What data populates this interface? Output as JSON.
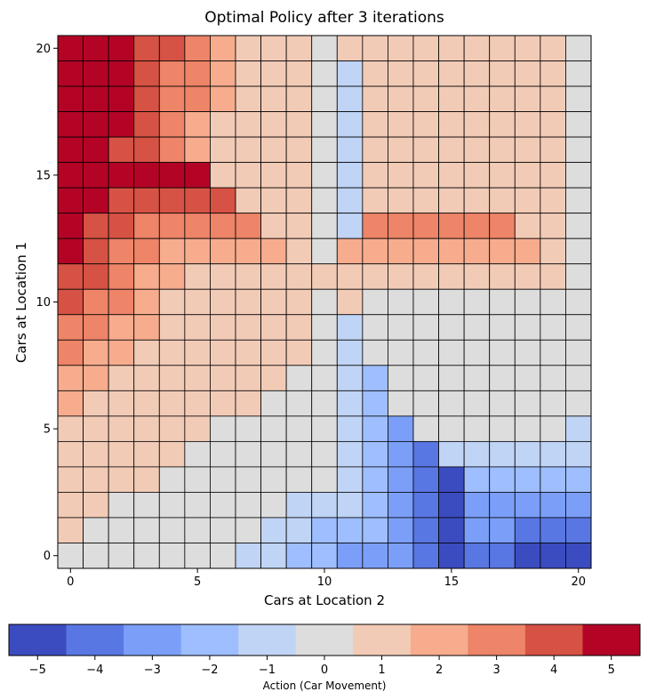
{
  "chart_data": {
    "type": "heatmap",
    "title": "Optimal Policy after 3 iterations",
    "xlabel": "Cars at Location 2",
    "ylabel": "Cars at Location 1",
    "x": [
      0,
      1,
      2,
      3,
      4,
      5,
      6,
      7,
      8,
      9,
      10,
      11,
      12,
      13,
      14,
      15,
      16,
      17,
      18,
      19,
      20
    ],
    "y": [
      0,
      1,
      2,
      3,
      4,
      5,
      6,
      7,
      8,
      9,
      10,
      11,
      12,
      13,
      14,
      15,
      16,
      17,
      18,
      19,
      20
    ],
    "x_ticks": [
      0,
      5,
      10,
      15,
      20
    ],
    "y_ticks": [
      0,
      5,
      10,
      15,
      20
    ],
    "colormap": "coolwarm",
    "colorbar": {
      "label": "Action (Car Movement)",
      "ticks": [
        "−5",
        "−4",
        "−3",
        "−2",
        "−1",
        "0",
        "1",
        "2",
        "3",
        "4",
        "5"
      ],
      "range": [
        -5,
        5
      ]
    },
    "values_by_y_desc": [
      [
        5,
        5,
        5,
        4,
        4,
        3,
        2,
        1,
        1,
        1,
        0,
        1,
        1,
        1,
        1,
        1,
        1,
        1,
        1,
        1,
        0
      ],
      [
        5,
        5,
        5,
        4,
        3,
        3,
        2,
        1,
        1,
        1,
        0,
        -1,
        1,
        1,
        1,
        1,
        1,
        1,
        1,
        1,
        0
      ],
      [
        5,
        5,
        5,
        4,
        3,
        3,
        2,
        1,
        1,
        1,
        0,
        -1,
        1,
        1,
        1,
        1,
        1,
        1,
        1,
        1,
        0
      ],
      [
        5,
        5,
        5,
        4,
        3,
        2,
        1,
        1,
        1,
        1,
        0,
        -1,
        1,
        1,
        1,
        1,
        1,
        1,
        1,
        1,
        0
      ],
      [
        5,
        5,
        4,
        4,
        3,
        2,
        1,
        1,
        1,
        1,
        0,
        -1,
        1,
        1,
        1,
        1,
        1,
        1,
        1,
        1,
        0
      ],
      [
        5,
        5,
        5,
        5,
        5,
        5,
        1,
        1,
        1,
        1,
        0,
        -1,
        1,
        1,
        1,
        1,
        1,
        1,
        1,
        1,
        0
      ],
      [
        5,
        5,
        4,
        4,
        4,
        4,
        4,
        1,
        1,
        1,
        0,
        -1,
        1,
        1,
        1,
        1,
        1,
        1,
        1,
        1,
        0
      ],
      [
        5,
        4,
        4,
        3,
        3,
        3,
        3,
        3,
        1,
        1,
        0,
        -1,
        3,
        3,
        3,
        3,
        3,
        3,
        1,
        1,
        0
      ],
      [
        5,
        4,
        3,
        3,
        2,
        2,
        2,
        2,
        2,
        1,
        0,
        2,
        2,
        2,
        2,
        2,
        2,
        2,
        2,
        1,
        0
      ],
      [
        4,
        4,
        3,
        2,
        2,
        1,
        1,
        1,
        1,
        1,
        1,
        1,
        1,
        1,
        1,
        1,
        1,
        1,
        1,
        1,
        0
      ],
      [
        4,
        3,
        3,
        2,
        1,
        1,
        1,
        1,
        1,
        1,
        0,
        1,
        0,
        0,
        0,
        0,
        0,
        0,
        0,
        0,
        0
      ],
      [
        3,
        3,
        2,
        2,
        1,
        1,
        1,
        1,
        1,
        1,
        0,
        -1,
        0,
        0,
        0,
        0,
        0,
        0,
        0,
        0,
        0
      ],
      [
        3,
        2,
        2,
        1,
        1,
        1,
        1,
        1,
        1,
        1,
        0,
        -1,
        0,
        0,
        0,
        0,
        0,
        0,
        0,
        0,
        0
      ],
      [
        2,
        2,
        1,
        1,
        1,
        1,
        1,
        1,
        1,
        0,
        0,
        -1,
        -2,
        0,
        0,
        0,
        0,
        0,
        0,
        0,
        0
      ],
      [
        2,
        1,
        1,
        1,
        1,
        1,
        1,
        1,
        0,
        0,
        0,
        -1,
        -2,
        0,
        0,
        0,
        0,
        0,
        0,
        0,
        0
      ],
      [
        1,
        1,
        1,
        1,
        1,
        1,
        0,
        0,
        0,
        0,
        0,
        -1,
        -2,
        -3,
        0,
        0,
        0,
        0,
        0,
        0,
        -1
      ],
      [
        1,
        1,
        1,
        1,
        1,
        0,
        0,
        0,
        0,
        0,
        0,
        -1,
        -2,
        -3,
        -4,
        -1,
        -1,
        -1,
        -1,
        -1,
        -1
      ],
      [
        1,
        1,
        1,
        1,
        0,
        0,
        0,
        0,
        0,
        0,
        0,
        -1,
        -2,
        -3,
        -4,
        -5,
        -2,
        -2,
        -2,
        -2,
        -2
      ],
      [
        1,
        1,
        0,
        0,
        0,
        0,
        0,
        0,
        0,
        -1,
        -1,
        -1,
        -2,
        -3,
        -4,
        -5,
        -3,
        -3,
        -3,
        -3,
        -3
      ],
      [
        1,
        0,
        0,
        0,
        0,
        0,
        0,
        0,
        -1,
        -1,
        -2,
        -2,
        -2,
        -3,
        -4,
        -5,
        -3,
        -3,
        -4,
        -4,
        -4
      ],
      [
        0,
        0,
        0,
        0,
        0,
        0,
        0,
        -1,
        -1,
        -2,
        -2,
        -3,
        -3,
        -3,
        -4,
        -5,
        -4,
        -4,
        -5,
        -5,
        -5
      ]
    ]
  },
  "colors": {
    "-5": "#3b4cc0",
    "-4": "#5977e3",
    "-3": "#7b9ff9",
    "-2": "#9ebeff",
    "-1": "#c0d4f5",
    "0": "#dddddd",
    "1": "#f2cbb7",
    "2": "#f7ac8e",
    "3": "#ee8468",
    "4": "#d65244",
    "5": "#b40426"
  }
}
